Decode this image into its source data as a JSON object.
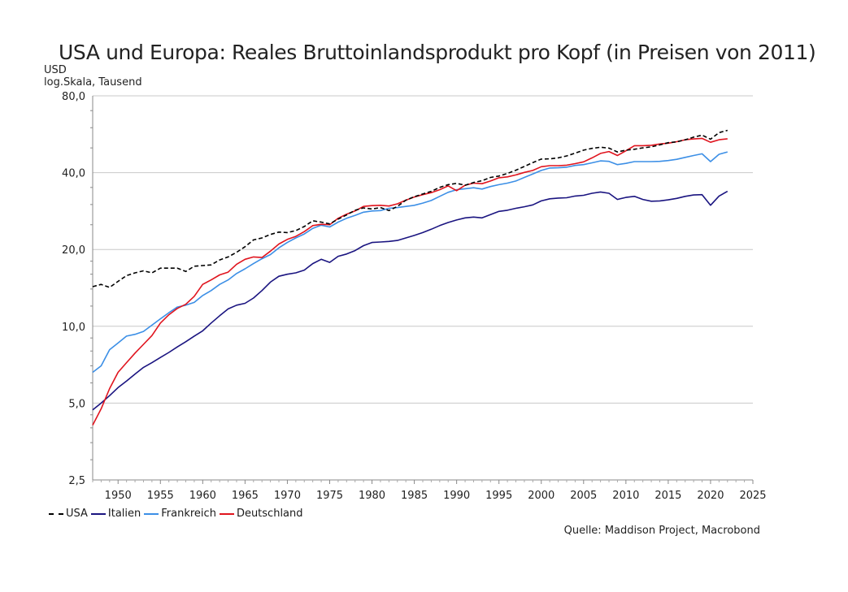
{
  "chart_data": {
    "type": "line",
    "title": "USA und Europa: Reales Bruttoinlandsprodukt pro Kopf (in Preisen von 2011)",
    "ylabel_lines": [
      "USD",
      "log.Skala, Tausend"
    ],
    "yscale": "log",
    "ylim": [
      2.5,
      80
    ],
    "xlim": [
      1947,
      2025
    ],
    "yticks": [
      {
        "value": 2.5,
        "label": "2,5"
      },
      {
        "value": 5,
        "label": "5,0"
      },
      {
        "value": 10,
        "label": "10,0"
      },
      {
        "value": 20,
        "label": "20,0"
      },
      {
        "value": 40,
        "label": "40,0"
      },
      {
        "value": 80,
        "label": "80,0"
      }
    ],
    "xticks": [
      1950,
      1955,
      1960,
      1965,
      1970,
      1975,
      1980,
      1985,
      1990,
      1995,
      2000,
      2005,
      2010,
      2015,
      2020,
      2025
    ],
    "legend_position": "bottom-left",
    "source": "Quelle: Maddison Project, Macrobond",
    "x": [
      1947,
      1948,
      1949,
      1950,
      1951,
      1952,
      1953,
      1954,
      1955,
      1956,
      1957,
      1958,
      1959,
      1960,
      1961,
      1962,
      1963,
      1964,
      1965,
      1966,
      1967,
      1968,
      1969,
      1970,
      1971,
      1972,
      1973,
      1974,
      1975,
      1976,
      1977,
      1978,
      1979,
      1980,
      1981,
      1982,
      1983,
      1984,
      1985,
      1986,
      1987,
      1988,
      1989,
      1990,
      1991,
      1992,
      1993,
      1994,
      1995,
      1996,
      1997,
      1998,
      1999,
      2000,
      2001,
      2002,
      2003,
      2004,
      2005,
      2006,
      2007,
      2008,
      2009,
      2010,
      2011,
      2012,
      2013,
      2014,
      2015,
      2016,
      2017,
      2018,
      2019,
      2020,
      2021,
      2022
    ],
    "series": [
      {
        "name": "USA",
        "color": "#000000",
        "dash": "5,3",
        "values": [
          14.3,
          14.6,
          14.2,
          15.0,
          15.8,
          16.2,
          16.5,
          16.2,
          16.9,
          16.9,
          16.9,
          16.4,
          17.2,
          17.3,
          17.4,
          18.2,
          18.7,
          19.5,
          20.5,
          21.8,
          22.2,
          22.9,
          23.4,
          23.3,
          23.7,
          24.6,
          25.9,
          25.6,
          25.2,
          26.3,
          27.3,
          28.5,
          29.1,
          28.8,
          29.2,
          28.4,
          29.5,
          31.2,
          32.2,
          33.0,
          33.8,
          35.0,
          35.9,
          36.3,
          35.7,
          36.6,
          37.2,
          38.3,
          38.8,
          39.7,
          40.9,
          42.3,
          43.8,
          45.2,
          45.3,
          45.7,
          46.5,
          47.7,
          49.0,
          49.8,
          50.3,
          49.9,
          48.2,
          49.0,
          49.4,
          50.0,
          50.5,
          51.4,
          52.4,
          52.8,
          53.8,
          55.1,
          56.1,
          54.1,
          57.4,
          58.6
        ]
      },
      {
        "name": "Italien",
        "color": "#1a1480",
        "dash": "",
        "values": [
          4.7,
          5.0,
          5.35,
          5.75,
          6.1,
          6.5,
          6.9,
          7.2,
          7.55,
          7.9,
          8.3,
          8.7,
          9.15,
          9.6,
          10.3,
          11.0,
          11.7,
          12.1,
          12.3,
          12.9,
          13.8,
          14.9,
          15.7,
          16.0,
          16.2,
          16.6,
          17.6,
          18.3,
          17.8,
          18.8,
          19.2,
          19.8,
          20.7,
          21.3,
          21.4,
          21.5,
          21.7,
          22.2,
          22.7,
          23.3,
          24.0,
          24.8,
          25.5,
          26.1,
          26.6,
          26.8,
          26.6,
          27.4,
          28.2,
          28.5,
          29.0,
          29.4,
          29.9,
          31.0,
          31.6,
          31.8,
          31.9,
          32.4,
          32.6,
          33.2,
          33.6,
          33.2,
          31.4,
          32.0,
          32.3,
          31.4,
          30.9,
          31.0,
          31.3,
          31.7,
          32.3,
          32.7,
          32.8,
          29.8,
          32.4,
          33.8
        ]
      },
      {
        "name": "Frankreich",
        "color": "#3c8fe6",
        "dash": "",
        "values": [
          6.6,
          7.0,
          8.1,
          8.6,
          9.15,
          9.3,
          9.55,
          10.1,
          10.7,
          11.3,
          11.9,
          12.1,
          12.4,
          13.2,
          13.8,
          14.6,
          15.2,
          16.1,
          16.8,
          17.6,
          18.4,
          19.1,
          20.3,
          21.3,
          22.2,
          23.0,
          24.2,
          24.9,
          24.5,
          25.6,
          26.5,
          27.2,
          28.0,
          28.3,
          28.4,
          29.0,
          29.2,
          29.5,
          29.8,
          30.4,
          31.1,
          32.3,
          33.5,
          34.3,
          34.6,
          34.9,
          34.5,
          35.3,
          35.9,
          36.4,
          37.1,
          38.3,
          39.5,
          40.8,
          41.7,
          41.8,
          42.0,
          42.7,
          43.0,
          43.7,
          44.5,
          44.3,
          43.0,
          43.5,
          44.2,
          44.2,
          44.2,
          44.3,
          44.6,
          45.1,
          45.9,
          46.7,
          47.4,
          44.2,
          47.2,
          48.2
        ]
      },
      {
        "name": "Deutschland",
        "color": "#e0141e",
        "dash": "",
        "values": [
          4.1,
          4.75,
          5.7,
          6.6,
          7.2,
          7.85,
          8.5,
          9.2,
          10.3,
          11.1,
          11.75,
          12.2,
          13.1,
          14.6,
          15.2,
          15.9,
          16.3,
          17.5,
          18.3,
          18.7,
          18.6,
          19.7,
          21.0,
          21.9,
          22.5,
          23.5,
          24.8,
          25.1,
          25.0,
          26.5,
          27.5,
          28.3,
          29.5,
          29.7,
          29.8,
          29.6,
          30.2,
          31.2,
          32.1,
          32.8,
          33.4,
          34.3,
          35.5,
          34.0,
          35.7,
          36.4,
          36.2,
          37.1,
          38.2,
          38.5,
          39.2,
          40.1,
          40.8,
          42.2,
          42.6,
          42.6,
          42.8,
          43.4,
          44.1,
          45.7,
          47.6,
          48.4,
          46.7,
          48.7,
          51.0,
          51.0,
          51.2,
          51.8,
          52.2,
          52.9,
          53.8,
          54.2,
          54.5,
          52.6,
          53.8,
          54.3
        ]
      }
    ]
  }
}
